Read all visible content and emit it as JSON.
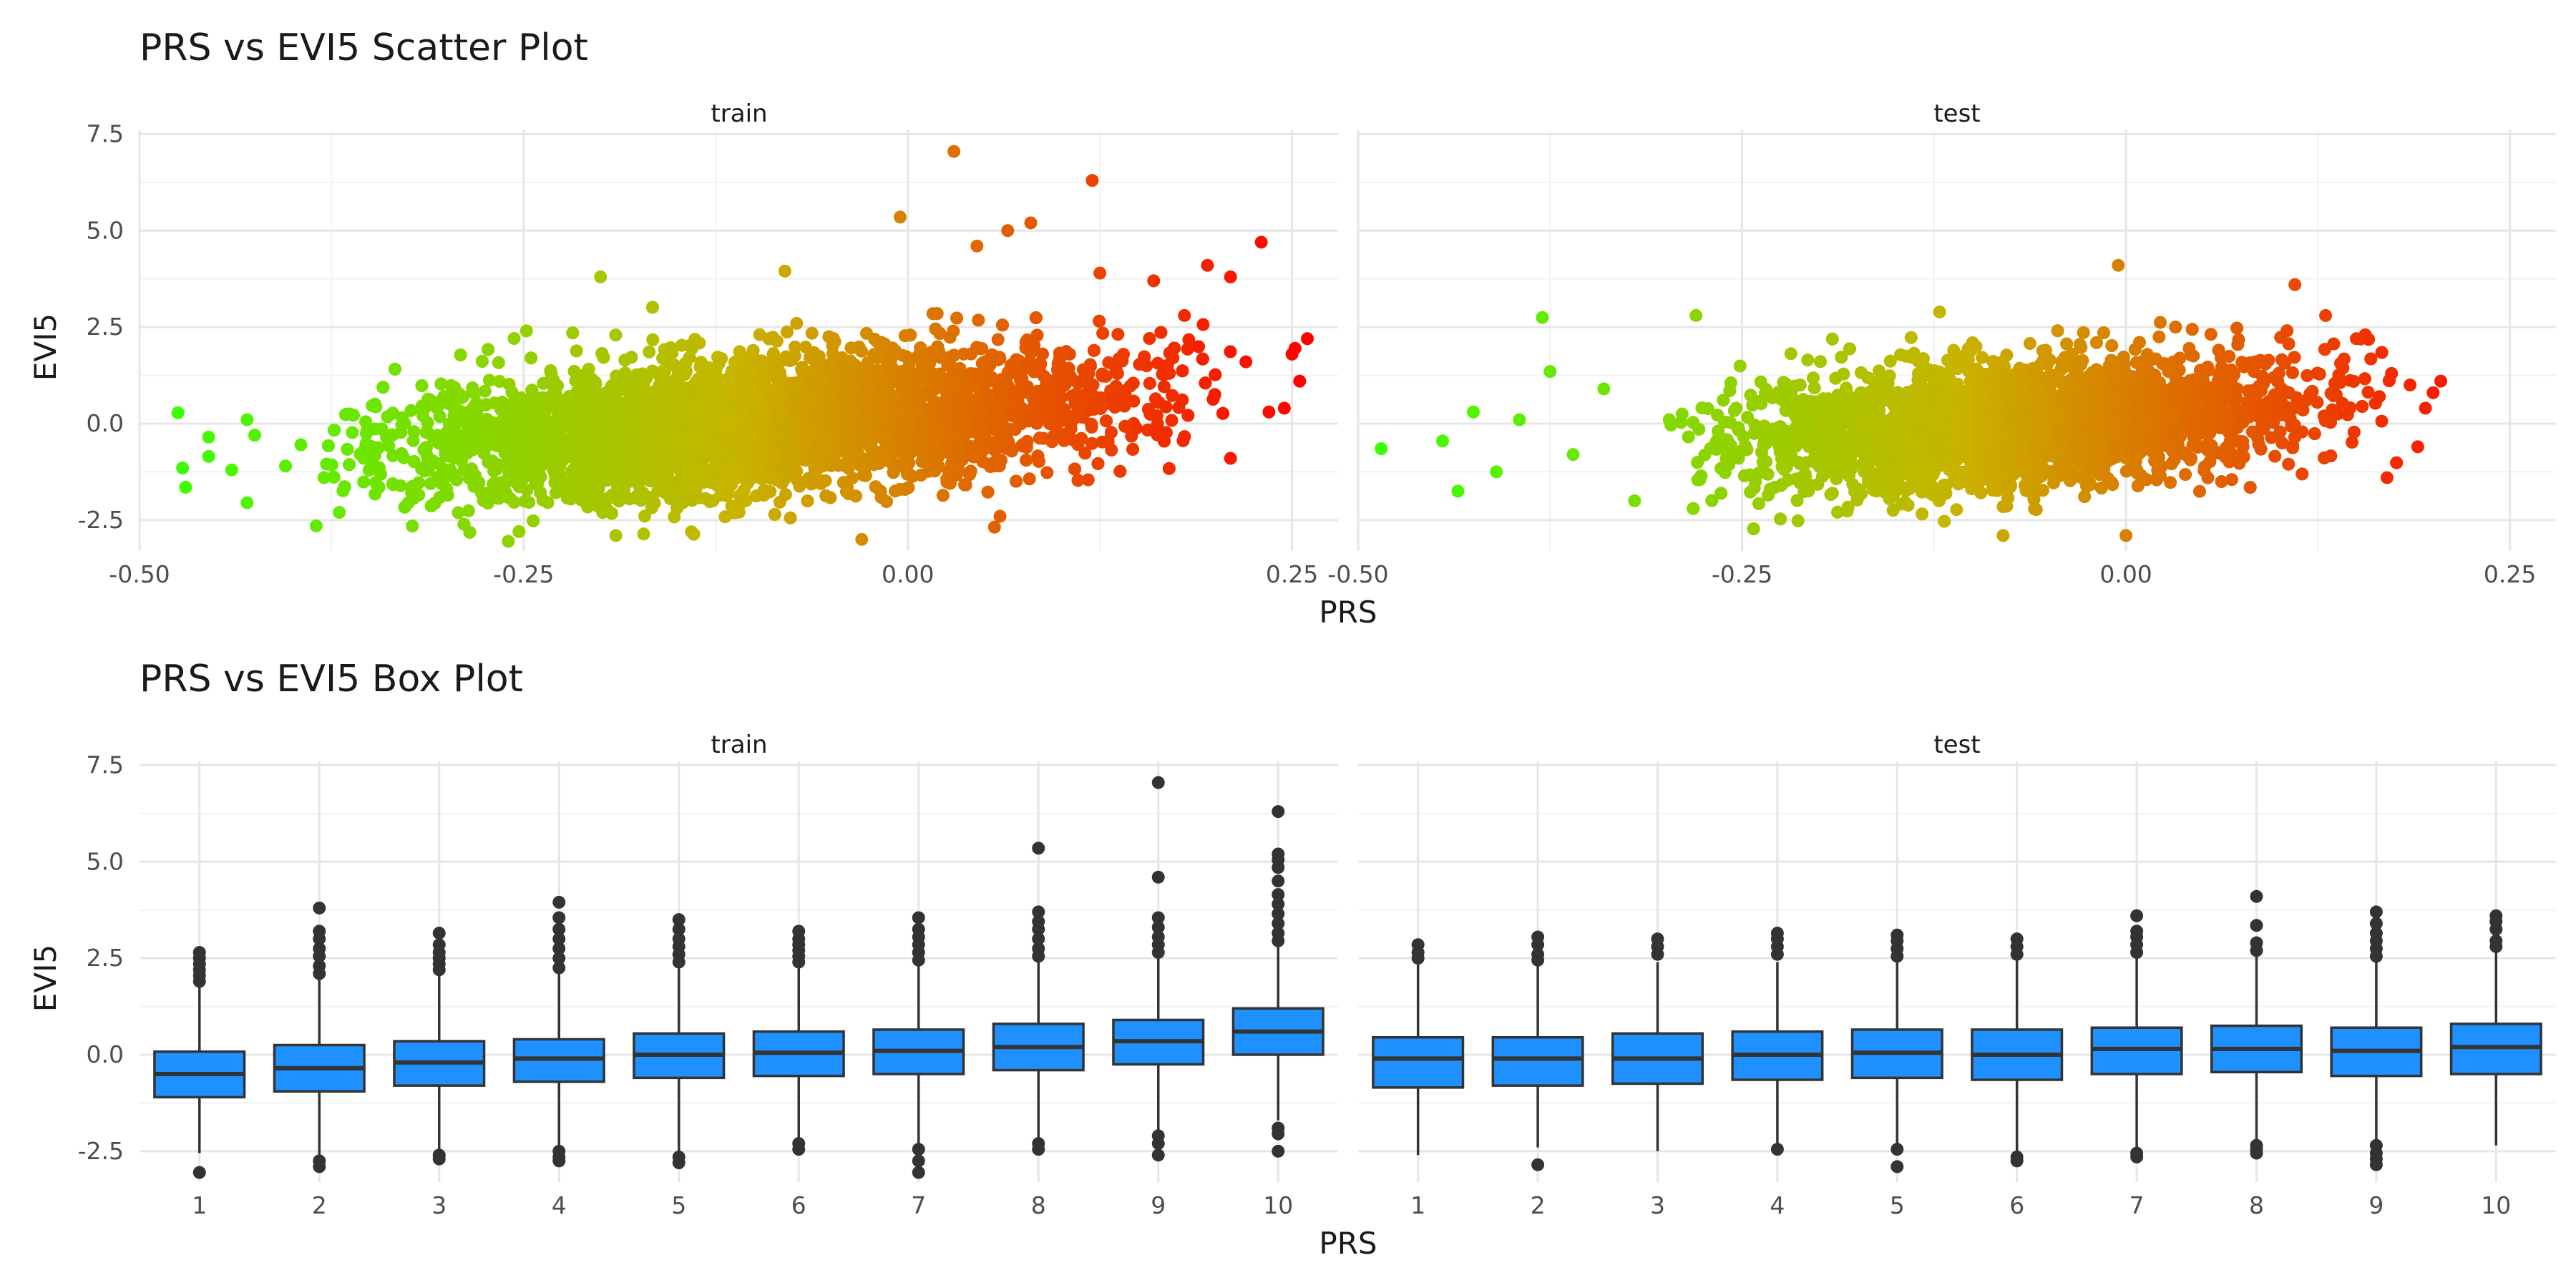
{
  "chart_data": [
    {
      "type": "scatter",
      "title": "PRS vs EVI5 Scatter Plot",
      "xlabel": "PRS",
      "ylabel": "EVI5",
      "facets": [
        "train",
        "test"
      ],
      "xlim": [
        -0.5,
        0.28
      ],
      "ylim": [
        -3.3,
        7.6
      ],
      "x_ticks": [
        "-0.50",
        "-0.25",
        "0.00",
        "0.25"
      ],
      "y_ticks": [
        "-2.5",
        "0.0",
        "2.5",
        "5.0",
        "7.5"
      ],
      "color_scale": {
        "low": "#3cff00",
        "mid": "#c8b400",
        "high": "#ff0000",
        "mapped_to": "PRS"
      },
      "grid": true,
      "legend": "none",
      "series": [
        {
          "facet": "train",
          "cloud": {
            "x_range": [
              -0.34,
              0.15
            ],
            "x_center": -0.1,
            "y_mean_at_xmin": -0.7,
            "y_mean_at_xmax": 0.7,
            "y_sd": 0.85
          },
          "points": [
            [
              -0.475,
              0.28
            ],
            [
              -0.472,
              -1.15
            ],
            [
              -0.47,
              -1.65
            ],
            [
              -0.455,
              -0.35
            ],
            [
              -0.455,
              -0.85
            ],
            [
              -0.44,
              -1.2
            ],
            [
              -0.43,
              0.1
            ],
            [
              -0.425,
              -0.3
            ],
            [
              -0.43,
              -2.05
            ],
            [
              -0.405,
              -1.1
            ],
            [
              -0.395,
              -0.55
            ],
            [
              -0.385,
              -2.65
            ],
            [
              -0.38,
              -1.4
            ],
            [
              -0.37,
              -2.3
            ],
            [
              -0.2,
              3.8
            ],
            [
              -0.08,
              3.95
            ],
            [
              -0.005,
              5.35
            ],
            [
              0.03,
              7.05
            ],
            [
              0.045,
              4.6
            ],
            [
              0.065,
              5.0
            ],
            [
              0.08,
              5.2
            ],
            [
              0.12,
              6.3
            ],
            [
              0.125,
              3.9
            ],
            [
              0.16,
              3.7
            ],
            [
              0.18,
              2.8
            ],
            [
              0.195,
              4.1
            ],
            [
              0.21,
              3.8
            ],
            [
              0.23,
              4.7
            ],
            [
              0.22,
              1.6
            ],
            [
              0.235,
              0.3
            ],
            [
              0.245,
              0.4
            ],
            [
              0.25,
              1.8
            ],
            [
              0.255,
              1.1
            ],
            [
              0.26,
              2.2
            ],
            [
              0.252,
              1.95
            ],
            [
              -0.03,
              -3.0
            ],
            [
              -0.19,
              -2.9
            ],
            [
              -0.26,
              -3.05
            ],
            [
              0.06,
              -2.4
            ],
            [
              0.21,
              -0.9
            ]
          ]
        },
        {
          "facet": "test",
          "cloud": {
            "x_range": [
              -0.26,
              0.12
            ],
            "x_center": -0.07,
            "y_mean_at_xmin": -0.5,
            "y_mean_at_xmax": 0.5,
            "y_sd": 0.8
          },
          "points": [
            [
              -0.485,
              -0.65
            ],
            [
              -0.445,
              -0.45
            ],
            [
              -0.435,
              -1.75
            ],
            [
              -0.425,
              0.3
            ],
            [
              -0.41,
              -1.25
            ],
            [
              -0.395,
              0.1
            ],
            [
              -0.38,
              2.75
            ],
            [
              -0.375,
              1.35
            ],
            [
              -0.36,
              -0.8
            ],
            [
              -0.34,
              0.9
            ],
            [
              -0.32,
              -2.0
            ],
            [
              -0.28,
              2.8
            ],
            [
              -0.005,
              4.1
            ],
            [
              0.11,
              3.6
            ],
            [
              0.13,
              2.8
            ],
            [
              0.15,
              2.2
            ],
            [
              0.17,
              -1.4
            ],
            [
              0.185,
              1.0
            ],
            [
              0.195,
              0.4
            ],
            [
              0.2,
              0.8
            ],
            [
              0.205,
              1.1
            ],
            [
              0.19,
              -0.6
            ],
            [
              0.165,
              0.7
            ],
            [
              -0.08,
              -2.9
            ],
            [
              0.0,
              -2.9
            ]
          ]
        }
      ]
    },
    {
      "type": "box",
      "title": "PRS vs EVI5 Box Plot",
      "xlabel": "PRS",
      "ylabel": "EVI5",
      "facets": [
        "train",
        "test"
      ],
      "categories": [
        "1",
        "2",
        "3",
        "4",
        "5",
        "6",
        "7",
        "8",
        "9",
        "10"
      ],
      "ylim": [
        -3.3,
        7.6
      ],
      "y_ticks": [
        "-2.5",
        "0.0",
        "2.5",
        "5.0",
        "7.5"
      ],
      "fill": "#1e90ff",
      "grid": true,
      "legend": "none",
      "series": [
        {
          "facet": "train",
          "boxes": [
            {
              "cat": "1",
              "min": -2.55,
              "q1": -1.1,
              "median": -0.5,
              "q3": 0.08,
              "max": 1.8,
              "outliers": [
                1.9,
                2.05,
                2.2,
                2.35,
                2.5,
                2.65,
                -3.05
              ]
            },
            {
              "cat": "2",
              "min": -2.6,
              "q1": -0.95,
              "median": -0.35,
              "q3": 0.25,
              "max": 1.95,
              "outliers": [
                2.1,
                2.3,
                2.55,
                2.75,
                3.0,
                3.2,
                3.8,
                -2.75,
                -2.9
              ]
            },
            {
              "cat": "3",
              "min": -2.5,
              "q1": -0.8,
              "median": -0.2,
              "q3": 0.35,
              "max": 2.05,
              "outliers": [
                2.2,
                2.35,
                2.5,
                2.65,
                2.85,
                3.15,
                -2.6,
                -2.7
              ]
            },
            {
              "cat": "4",
              "min": -2.4,
              "q1": -0.7,
              "median": -0.1,
              "q3": 0.4,
              "max": 2.1,
              "outliers": [
                2.25,
                2.5,
                2.75,
                3.0,
                3.25,
                3.55,
                3.95,
                -2.5,
                -2.65,
                -2.75
              ]
            },
            {
              "cat": "5",
              "min": -2.5,
              "q1": -0.6,
              "median": 0.0,
              "q3": 0.55,
              "max": 2.25,
              "outliers": [
                2.4,
                2.6,
                2.8,
                3.0,
                3.25,
                3.5,
                -2.65,
                -2.8
              ]
            },
            {
              "cat": "6",
              "min": -2.2,
              "q1": -0.55,
              "median": 0.05,
              "q3": 0.6,
              "max": 2.25,
              "outliers": [
                2.4,
                2.55,
                2.7,
                2.85,
                3.0,
                3.2,
                -2.3,
                -2.45
              ]
            },
            {
              "cat": "7",
              "min": -2.3,
              "q1": -0.5,
              "median": 0.1,
              "q3": 0.65,
              "max": 2.3,
              "outliers": [
                2.45,
                2.65,
                2.85,
                3.05,
                3.25,
                3.55,
                -2.45,
                -2.75,
                -3.05
              ]
            },
            {
              "cat": "8",
              "min": -2.2,
              "q1": -0.4,
              "median": 0.2,
              "q3": 0.8,
              "max": 2.4,
              "outliers": [
                2.55,
                2.75,
                3.0,
                3.25,
                3.45,
                3.7,
                5.35,
                -2.3,
                -2.45
              ]
            },
            {
              "cat": "9",
              "min": -1.95,
              "q1": -0.25,
              "median": 0.35,
              "q3": 0.9,
              "max": 2.5,
              "outliers": [
                2.65,
                2.85,
                3.05,
                3.3,
                3.55,
                4.6,
                7.05,
                -2.1,
                -2.3,
                -2.6
              ]
            },
            {
              "cat": "10",
              "min": -1.7,
              "q1": 0.0,
              "median": 0.6,
              "q3": 1.2,
              "max": 2.8,
              "outliers": [
                2.95,
                3.15,
                3.4,
                3.65,
                3.9,
                4.15,
                4.5,
                4.85,
                5.05,
                5.2,
                6.3,
                -1.9,
                -2.05,
                -2.5
              ]
            }
          ]
        },
        {
          "facet": "test",
          "boxes": [
            {
              "cat": "1",
              "min": -2.6,
              "q1": -0.85,
              "median": -0.1,
              "q3": 0.45,
              "max": 2.35,
              "outliers": [
                2.5,
                2.65,
                2.85
              ]
            },
            {
              "cat": "2",
              "min": -2.4,
              "q1": -0.8,
              "median": -0.1,
              "q3": 0.45,
              "max": 2.3,
              "outliers": [
                2.45,
                2.6,
                2.85,
                3.05,
                -2.85
              ]
            },
            {
              "cat": "3",
              "min": -2.5,
              "q1": -0.75,
              "median": -0.1,
              "q3": 0.55,
              "max": 2.4,
              "outliers": [
                2.6,
                2.8,
                3.0
              ]
            },
            {
              "cat": "4",
              "min": -2.3,
              "q1": -0.65,
              "median": 0.0,
              "q3": 0.6,
              "max": 2.4,
              "outliers": [
                2.6,
                2.8,
                3.0,
                3.15,
                -2.45
              ]
            },
            {
              "cat": "5",
              "min": -2.3,
              "q1": -0.6,
              "median": 0.05,
              "q3": 0.65,
              "max": 2.4,
              "outliers": [
                2.55,
                2.75,
                2.95,
                3.1,
                -2.45,
                -2.9
              ]
            },
            {
              "cat": "6",
              "min": -2.5,
              "q1": -0.65,
              "median": 0.0,
              "q3": 0.65,
              "max": 2.45,
              "outliers": [
                2.6,
                2.8,
                3.0,
                -2.65,
                -2.75
              ]
            },
            {
              "cat": "7",
              "min": -2.4,
              "q1": -0.5,
              "median": 0.15,
              "q3": 0.7,
              "max": 2.5,
              "outliers": [
                2.65,
                2.85,
                3.05,
                3.2,
                3.6,
                -2.55,
                -2.65
              ]
            },
            {
              "cat": "8",
              "min": -2.2,
              "q1": -0.45,
              "median": 0.15,
              "q3": 0.75,
              "max": 2.55,
              "outliers": [
                2.7,
                2.9,
                3.35,
                4.1,
                -2.35,
                -2.45,
                -2.55
              ]
            },
            {
              "cat": "9",
              "min": -2.25,
              "q1": -0.55,
              "median": 0.1,
              "q3": 0.7,
              "max": 2.4,
              "outliers": [
                2.55,
                2.75,
                2.95,
                3.15,
                3.4,
                3.7,
                -2.35,
                -2.55,
                -2.7,
                -2.85
              ]
            },
            {
              "cat": "10",
              "min": -2.35,
              "q1": -0.5,
              "median": 0.2,
              "q3": 0.8,
              "max": 2.65,
              "outliers": [
                2.8,
                2.95,
                3.25,
                3.45,
                3.6
              ]
            }
          ]
        }
      ]
    }
  ]
}
